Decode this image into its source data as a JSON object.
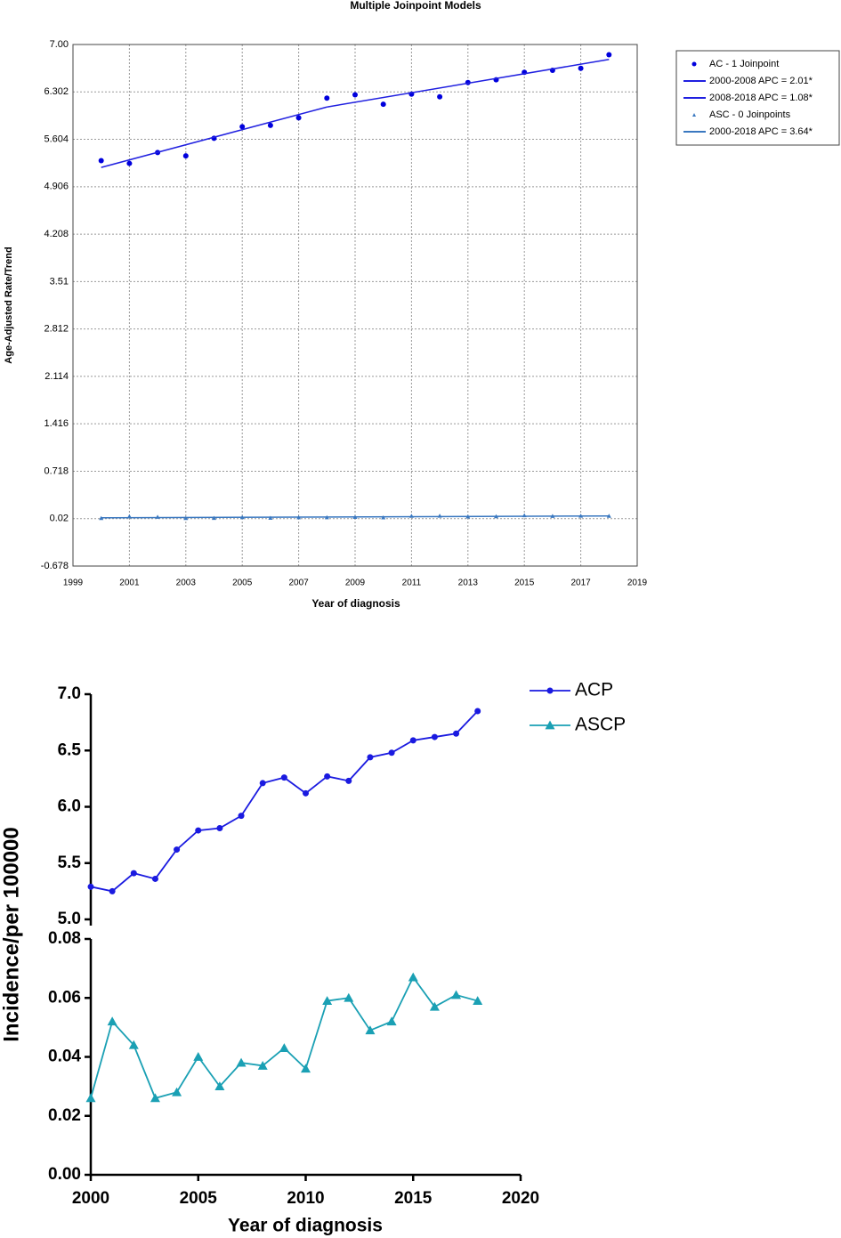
{
  "chart_data": [
    {
      "type": "line",
      "title": "Multiple Joinpoint Models",
      "y_label": "Age-Adjusted Rate/Trend",
      "x_label": "Year of diagnosis",
      "xlim": [
        1999,
        2019
      ],
      "xticks": [
        1999,
        2001,
        2003,
        2005,
        2007,
        2009,
        2011,
        2013,
        2015,
        2017,
        2019
      ],
      "ylim": [
        -0.678,
        7.0
      ],
      "yticks": [
        -0.678,
        0.02,
        0.718,
        1.416,
        2.114,
        2.812,
        3.51,
        4.208,
        4.906,
        5.604,
        6.302,
        {
          "value": 7.0,
          "label": "7.00"
        }
      ],
      "grid": true,
      "legend": "outside-right",
      "series": [
        {
          "name": "AC - 1 Joinpoint",
          "color": "#0000dd",
          "marker": "circle",
          "line": false,
          "x": [
            2000,
            2001,
            2002,
            2003,
            2004,
            2005,
            2006,
            2007,
            2008,
            2009,
            2010,
            2011,
            2012,
            2013,
            2014,
            2015,
            2016,
            2017,
            2018
          ],
          "values": [
            5.29,
            5.25,
            5.41,
            5.36,
            5.62,
            5.79,
            5.81,
            5.92,
            6.21,
            6.26,
            6.12,
            6.27,
            6.23,
            6.44,
            6.48,
            6.59,
            6.62,
            6.65,
            6.85
          ]
        },
        {
          "name": "2000-2008 APC  = 2.01*",
          "color": "#2020e0",
          "marker": "none",
          "line": true,
          "x": [
            2000,
            2008
          ],
          "values": [
            5.19,
            6.08
          ]
        },
        {
          "name": "2008-2018 APC  = 1.08*",
          "color": "#2020e0",
          "marker": "none",
          "line": true,
          "x": [
            2008,
            2018
          ],
          "values": [
            6.08,
            6.78
          ]
        },
        {
          "name": "ASC - 0 Joinpoints",
          "color": "#3a78c0",
          "marker": "triangle",
          "line": false,
          "x": [
            2000,
            2001,
            2002,
            2003,
            2004,
            2005,
            2006,
            2007,
            2008,
            2009,
            2010,
            2011,
            2012,
            2013,
            2014,
            2015,
            2016,
            2017,
            2018
          ],
          "values": [
            0.026,
            0.052,
            0.044,
            0.026,
            0.028,
            0.04,
            0.03,
            0.038,
            0.037,
            0.043,
            0.036,
            0.059,
            0.06,
            0.049,
            0.052,
            0.067,
            0.057,
            0.061,
            0.059
          ]
        },
        {
          "name": "2000-2018 APC  = 3.64*",
          "color": "#3a78c0",
          "marker": "none",
          "line": true,
          "x": [
            2000,
            2018
          ],
          "values": [
            0.032,
            0.059
          ]
        }
      ]
    },
    {
      "type": "line",
      "y_label": "Incidence/per 100000",
      "x_label": "Year of diagnosis",
      "xlim": [
        2000,
        2020
      ],
      "xticks": [
        2000,
        2005,
        2010,
        2015,
        2020
      ],
      "ylim": [
        5.0,
        7.0
      ],
      "yticks": [
        {
          "value": 5.0,
          "label": "5.0"
        },
        5.5,
        {
          "value": 6.0,
          "label": "6.0"
        },
        6.5,
        {
          "value": 7.0,
          "label": "7.0"
        }
      ],
      "y2lim": [
        0.0,
        0.08
      ],
      "y2ticks": [
        {
          "value": 0.0,
          "label": "0.00"
        },
        {
          "value": 0.02,
          "label": "0.02"
        },
        {
          "value": 0.04,
          "label": "0.04"
        },
        {
          "value": 0.06,
          "label": "0.06"
        },
        {
          "value": 0.08,
          "label": "0.08"
        }
      ],
      "legend": "upper-right",
      "x": [
        2000,
        2001,
        2002,
        2003,
        2004,
        2005,
        2006,
        2007,
        2008,
        2009,
        2010,
        2011,
        2012,
        2013,
        2014,
        2015,
        2016,
        2017,
        2018
      ],
      "series": [
        {
          "name": "ACP",
          "color": "#1a1ae0",
          "marker": "circle",
          "line": true,
          "values": [
            5.29,
            5.25,
            5.41,
            5.36,
            5.62,
            5.79,
            5.81,
            5.92,
            6.21,
            6.26,
            6.12,
            6.27,
            6.23,
            6.44,
            6.48,
            6.59,
            6.62,
            6.65,
            6.85
          ]
        },
        {
          "name": "ASCP",
          "color": "#1aa0b4",
          "marker": "triangle",
          "line": true,
          "axis": "y2",
          "values": [
            0.026,
            0.052,
            0.044,
            0.026,
            0.028,
            0.04,
            0.03,
            0.038,
            0.037,
            0.043,
            0.036,
            0.059,
            0.06,
            0.049,
            0.052,
            0.067,
            0.057,
            0.061,
            0.059
          ]
        }
      ]
    }
  ]
}
